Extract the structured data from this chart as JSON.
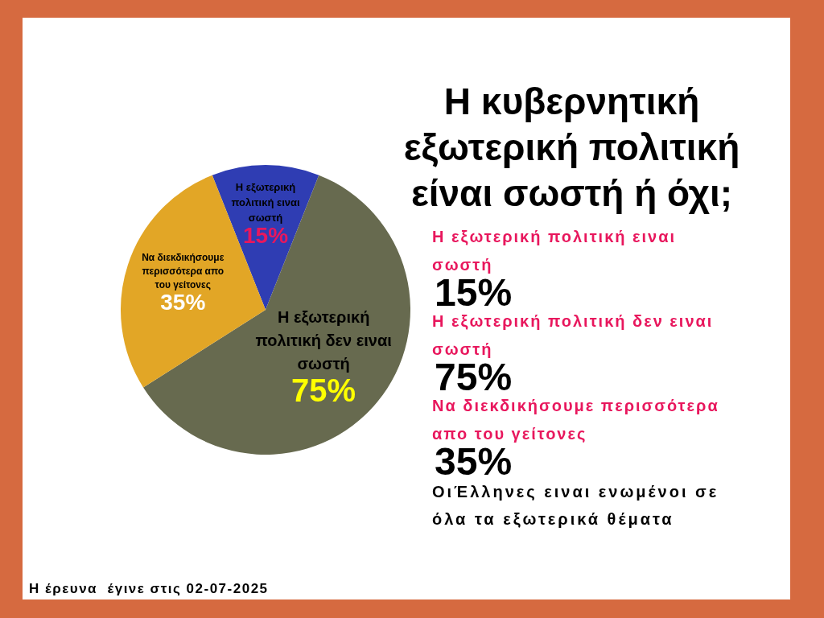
{
  "chart_data": {
    "type": "pie",
    "title": "Η κυβερνητική εξωτερική πολιτική είναι σωστή ή όχι;",
    "categories": [
      "Η εξωτερική πολιτική ειναι σωστή",
      "Η εξωτερική πολιτική δεν ειναι σωστή",
      "Να διεκδικήσουμε περισσότερα απο του γείτονες"
    ],
    "values": [
      15,
      75,
      35
    ],
    "value_labels": [
      "15%",
      "75%",
      "35%"
    ],
    "colors": [
      "#2f3db3",
      "#676a4f",
      "#e2a626"
    ],
    "annotations": [
      "ΟιΈλληνες ειναι ενωμένοι σε όλα τα εξωτερικά θέματα",
      "Η έρευνα  έγινε στις 02-07-2025"
    ]
  }
}
